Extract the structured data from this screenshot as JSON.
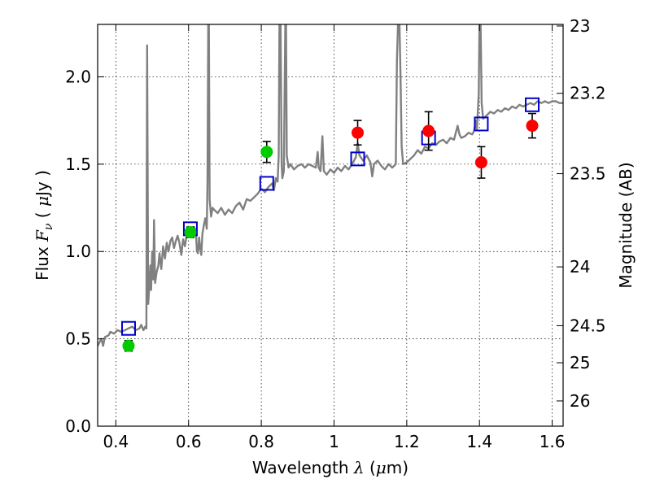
{
  "chart_data": {
    "type": "scatter",
    "xlabel": {
      "prefix": "Wavelength  ",
      "symbol": "λ",
      "unit_open": " (",
      "unit_mu": "μ",
      "unit_rest": "m)"
    },
    "ylabel": {
      "prefix": "Flux  ",
      "symbol": "F",
      "subscript": "ν",
      "unit_open": "  ( ",
      "unit_mu": "μ",
      "unit_rest": "Jy )"
    },
    "y2label": "Magnitude (AB)",
    "xlim": [
      0.35,
      1.63
    ],
    "ylim": [
      0.0,
      2.3
    ],
    "grid": true,
    "x_ticks": [
      {
        "value": 0.4,
        "label": "0.4"
      },
      {
        "value": 0.6,
        "label": "0.6"
      },
      {
        "value": 0.8,
        "label": "0.8"
      },
      {
        "value": 1.0,
        "label": "1"
      },
      {
        "value": 1.2,
        "label": "1.2"
      },
      {
        "value": 1.4,
        "label": "1.4"
      },
      {
        "value": 1.6,
        "label": "1.6"
      }
    ],
    "y_ticks": [
      {
        "value": 0.0,
        "label": "0.0"
      },
      {
        "value": 0.5,
        "label": "0.5"
      },
      {
        "value": 1.0,
        "label": "1.0"
      },
      {
        "value": 1.5,
        "label": "1.5"
      },
      {
        "value": 2.0,
        "label": "2.0"
      }
    ],
    "y2_ticks": [
      {
        "value": 23.0,
        "label": "23"
      },
      {
        "value": 23.2,
        "label": "23.2"
      },
      {
        "value": 23.5,
        "label": "23.5"
      },
      {
        "value": 24.0,
        "label": "24"
      },
      {
        "value": 24.5,
        "label": "24.5"
      },
      {
        "value": 25.0,
        "label": "25"
      },
      {
        "value": 26.0,
        "label": "26"
      }
    ],
    "series": [
      {
        "kind": "line",
        "color": "#808080",
        "points": [
          [
            0.35,
            0.46
          ],
          [
            0.36,
            0.5
          ],
          [
            0.365,
            0.46
          ],
          [
            0.37,
            0.51
          ],
          [
            0.38,
            0.52
          ],
          [
            0.385,
            0.54
          ],
          [
            0.395,
            0.53
          ],
          [
            0.405,
            0.55
          ],
          [
            0.415,
            0.54
          ],
          [
            0.425,
            0.55
          ],
          [
            0.435,
            0.56
          ],
          [
            0.445,
            0.57
          ],
          [
            0.455,
            0.55
          ],
          [
            0.465,
            0.56
          ],
          [
            0.47,
            0.58
          ],
          [
            0.476,
            0.55
          ],
          [
            0.481,
            0.57
          ],
          [
            0.484,
            0.56
          ],
          [
            0.486,
            2.18
          ],
          [
            0.489,
            0.7
          ],
          [
            0.492,
            0.8
          ],
          [
            0.495,
            0.92
          ],
          [
            0.497,
            0.78
          ],
          [
            0.5,
            1.0
          ],
          [
            0.503,
            0.84
          ],
          [
            0.505,
            1.18
          ],
          [
            0.508,
            0.82
          ],
          [
            0.512,
            0.88
          ],
          [
            0.517,
            0.92
          ],
          [
            0.52,
            0.99
          ],
          [
            0.525,
            0.9
          ],
          [
            0.53,
            1.03
          ],
          [
            0.535,
            0.96
          ],
          [
            0.54,
            1.05
          ],
          [
            0.545,
            1.0
          ],
          [
            0.55,
            1.06
          ],
          [
            0.555,
            1.08
          ],
          [
            0.56,
            1.02
          ],
          [
            0.565,
            1.06
          ],
          [
            0.57,
            1.09
          ],
          [
            0.575,
            1.05
          ],
          [
            0.58,
            0.98
          ],
          [
            0.585,
            1.07
          ],
          [
            0.59,
            1.03
          ],
          [
            0.595,
            1.1
          ],
          [
            0.6,
            1.12
          ],
          [
            0.605,
            1.08
          ],
          [
            0.61,
            1.11
          ],
          [
            0.615,
            1.14
          ],
          [
            0.62,
            1.12
          ],
          [
            0.623,
            1.0
          ],
          [
            0.626,
            0.99
          ],
          [
            0.629,
            1.08
          ],
          [
            0.632,
            1.02
          ],
          [
            0.635,
            0.98
          ],
          [
            0.638,
            1.1
          ],
          [
            0.642,
            1.15
          ],
          [
            0.646,
            1.19
          ],
          [
            0.65,
            1.13
          ],
          [
            0.652,
            1.4
          ],
          [
            0.654,
            2.3
          ],
          [
            0.656,
            2.3
          ],
          [
            0.658,
            1.3
          ],
          [
            0.662,
            1.2
          ],
          [
            0.666,
            1.25
          ],
          [
            0.67,
            1.24
          ],
          [
            0.68,
            1.22
          ],
          [
            0.69,
            1.25
          ],
          [
            0.7,
            1.21
          ],
          [
            0.71,
            1.24
          ],
          [
            0.72,
            1.22
          ],
          [
            0.73,
            1.26
          ],
          [
            0.74,
            1.28
          ],
          [
            0.75,
            1.24
          ],
          [
            0.76,
            1.3
          ],
          [
            0.77,
            1.29
          ],
          [
            0.78,
            1.31
          ],
          [
            0.79,
            1.33
          ],
          [
            0.8,
            1.36
          ],
          [
            0.81,
            1.34
          ],
          [
            0.82,
            1.37
          ],
          [
            0.83,
            1.39
          ],
          [
            0.835,
            1.35
          ],
          [
            0.84,
            1.42
          ],
          [
            0.845,
            1.4
          ],
          [
            0.848,
            1.55
          ],
          [
            0.85,
            2.3
          ],
          [
            0.853,
            2.3
          ],
          [
            0.856,
            1.5
          ],
          [
            0.858,
            1.42
          ],
          [
            0.862,
            1.46
          ],
          [
            0.866,
            2.3
          ],
          [
            0.868,
            2.3
          ],
          [
            0.87,
            1.55
          ],
          [
            0.875,
            1.48
          ],
          [
            0.88,
            1.5
          ],
          [
            0.89,
            1.47
          ],
          [
            0.9,
            1.49
          ],
          [
            0.91,
            1.5
          ],
          [
            0.92,
            1.48
          ],
          [
            0.93,
            1.5
          ],
          [
            0.94,
            1.49
          ],
          [
            0.95,
            1.48
          ],
          [
            0.955,
            1.57
          ],
          [
            0.958,
            1.48
          ],
          [
            0.963,
            1.46
          ],
          [
            0.968,
            1.66
          ],
          [
            0.972,
            1.46
          ],
          [
            0.98,
            1.44
          ],
          [
            0.99,
            1.47
          ],
          [
            1.0,
            1.45
          ],
          [
            1.01,
            1.48
          ],
          [
            1.02,
            1.46
          ],
          [
            1.03,
            1.49
          ],
          [
            1.04,
            1.47
          ],
          [
            1.05,
            1.5
          ],
          [
            1.06,
            1.54
          ],
          [
            1.065,
            1.62
          ],
          [
            1.07,
            1.55
          ],
          [
            1.08,
            1.52
          ],
          [
            1.09,
            1.55
          ],
          [
            1.1,
            1.51
          ],
          [
            1.105,
            1.43
          ],
          [
            1.11,
            1.5
          ],
          [
            1.12,
            1.52
          ],
          [
            1.13,
            1.49
          ],
          [
            1.14,
            1.47
          ],
          [
            1.15,
            1.5
          ],
          [
            1.16,
            1.48
          ],
          [
            1.17,
            1.5
          ],
          [
            1.173,
            2.1
          ],
          [
            1.176,
            2.3
          ],
          [
            1.18,
            2.3
          ],
          [
            1.183,
            2.0
          ],
          [
            1.186,
            1.6
          ],
          [
            1.19,
            1.5
          ],
          [
            1.2,
            1.51
          ],
          [
            1.21,
            1.53
          ],
          [
            1.22,
            1.55
          ],
          [
            1.23,
            1.58
          ],
          [
            1.24,
            1.56
          ],
          [
            1.25,
            1.6
          ],
          [
            1.26,
            1.59
          ],
          [
            1.27,
            1.62
          ],
          [
            1.28,
            1.61
          ],
          [
            1.29,
            1.63
          ],
          [
            1.3,
            1.64
          ],
          [
            1.31,
            1.62
          ],
          [
            1.32,
            1.65
          ],
          [
            1.33,
            1.64
          ],
          [
            1.34,
            1.72
          ],
          [
            1.345,
            1.67
          ],
          [
            1.35,
            1.65
          ],
          [
            1.36,
            1.66
          ],
          [
            1.37,
            1.68
          ],
          [
            1.38,
            1.67
          ],
          [
            1.385,
            1.69
          ],
          [
            1.39,
            1.75
          ],
          [
            1.393,
            1.7
          ],
          [
            1.396,
            1.82
          ],
          [
            1.398,
            1.9
          ],
          [
            1.4,
            2.3
          ],
          [
            1.403,
            2.3
          ],
          [
            1.406,
            1.85
          ],
          [
            1.41,
            1.76
          ],
          [
            1.42,
            1.78
          ],
          [
            1.43,
            1.8
          ],
          [
            1.44,
            1.79
          ],
          [
            1.45,
            1.81
          ],
          [
            1.46,
            1.8
          ],
          [
            1.47,
            1.82
          ],
          [
            1.48,
            1.81
          ],
          [
            1.49,
            1.83
          ],
          [
            1.5,
            1.82
          ],
          [
            1.51,
            1.84
          ],
          [
            1.52,
            1.83
          ],
          [
            1.53,
            1.84
          ],
          [
            1.54,
            1.85
          ],
          [
            1.55,
            1.84
          ],
          [
            1.56,
            1.86
          ],
          [
            1.57,
            1.85
          ],
          [
            1.58,
            1.86
          ],
          [
            1.59,
            1.85
          ],
          [
            1.6,
            1.86
          ],
          [
            1.61,
            1.86
          ],
          [
            1.62,
            1.85
          ],
          [
            1.63,
            1.85
          ]
        ]
      },
      {
        "kind": "square",
        "color": "#0000cc",
        "points": [
          {
            "x": 0.435,
            "y": 0.56
          },
          {
            "x": 0.605,
            "y": 1.13
          },
          {
            "x": 0.815,
            "y": 1.39
          },
          {
            "x": 1.065,
            "y": 1.53
          },
          {
            "x": 1.26,
            "y": 1.65
          },
          {
            "x": 1.405,
            "y": 1.73
          },
          {
            "x": 1.545,
            "y": 1.84
          }
        ]
      },
      {
        "kind": "point",
        "color": "#00cc00",
        "points": [
          {
            "x": 0.435,
            "y": 0.46,
            "err": 0.03
          },
          {
            "x": 0.605,
            "y": 1.11,
            "err": 0.03
          },
          {
            "x": 0.815,
            "y": 1.57,
            "err": 0.06
          }
        ]
      },
      {
        "kind": "point",
        "color": "#ff0000",
        "points": [
          {
            "x": 1.065,
            "y": 1.68,
            "err": 0.07
          },
          {
            "x": 1.26,
            "y": 1.69,
            "err": 0.11
          },
          {
            "x": 1.405,
            "y": 1.51,
            "err": 0.09
          },
          {
            "x": 1.545,
            "y": 1.72,
            "err": 0.07
          }
        ]
      }
    ]
  }
}
